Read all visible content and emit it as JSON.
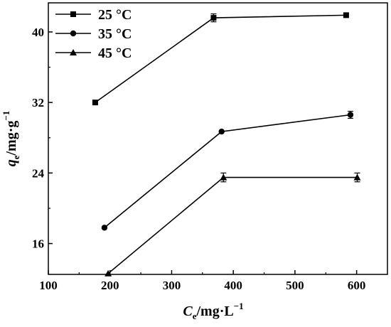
{
  "chart_data": {
    "type": "line",
    "xlabel": {
      "main": "C",
      "sub": "e",
      "rest": "/mg·L",
      "sup": "−1"
    },
    "ylabel": {
      "main": "q",
      "sub": "e",
      "rest": "/mg·g",
      "sup": "−1"
    },
    "xlim": [
      100,
      650
    ],
    "ylim": [
      12.5,
      43.3
    ],
    "xticks": [
      100,
      200,
      300,
      400,
      500,
      600
    ],
    "yticks": [
      16,
      24,
      32,
      40
    ],
    "legend_position": "top-left",
    "grid": false,
    "series": [
      {
        "name": "25 °C",
        "marker": "square",
        "x": [
          176,
          368,
          583
        ],
        "y": [
          32.0,
          41.6,
          41.9
        ],
        "err": [
          0.0,
          0.45,
          0.0
        ]
      },
      {
        "name": "35 °C",
        "marker": "circle",
        "x": [
          191,
          381,
          590
        ],
        "y": [
          17.8,
          28.7,
          30.6
        ],
        "err": [
          0.0,
          0.0,
          0.4
        ]
      },
      {
        "name": "45 °C",
        "marker": "triangle",
        "x": [
          197,
          384,
          601
        ],
        "y": [
          12.6,
          23.5,
          23.5
        ],
        "err": [
          0.0,
          0.5,
          0.5
        ]
      }
    ]
  }
}
